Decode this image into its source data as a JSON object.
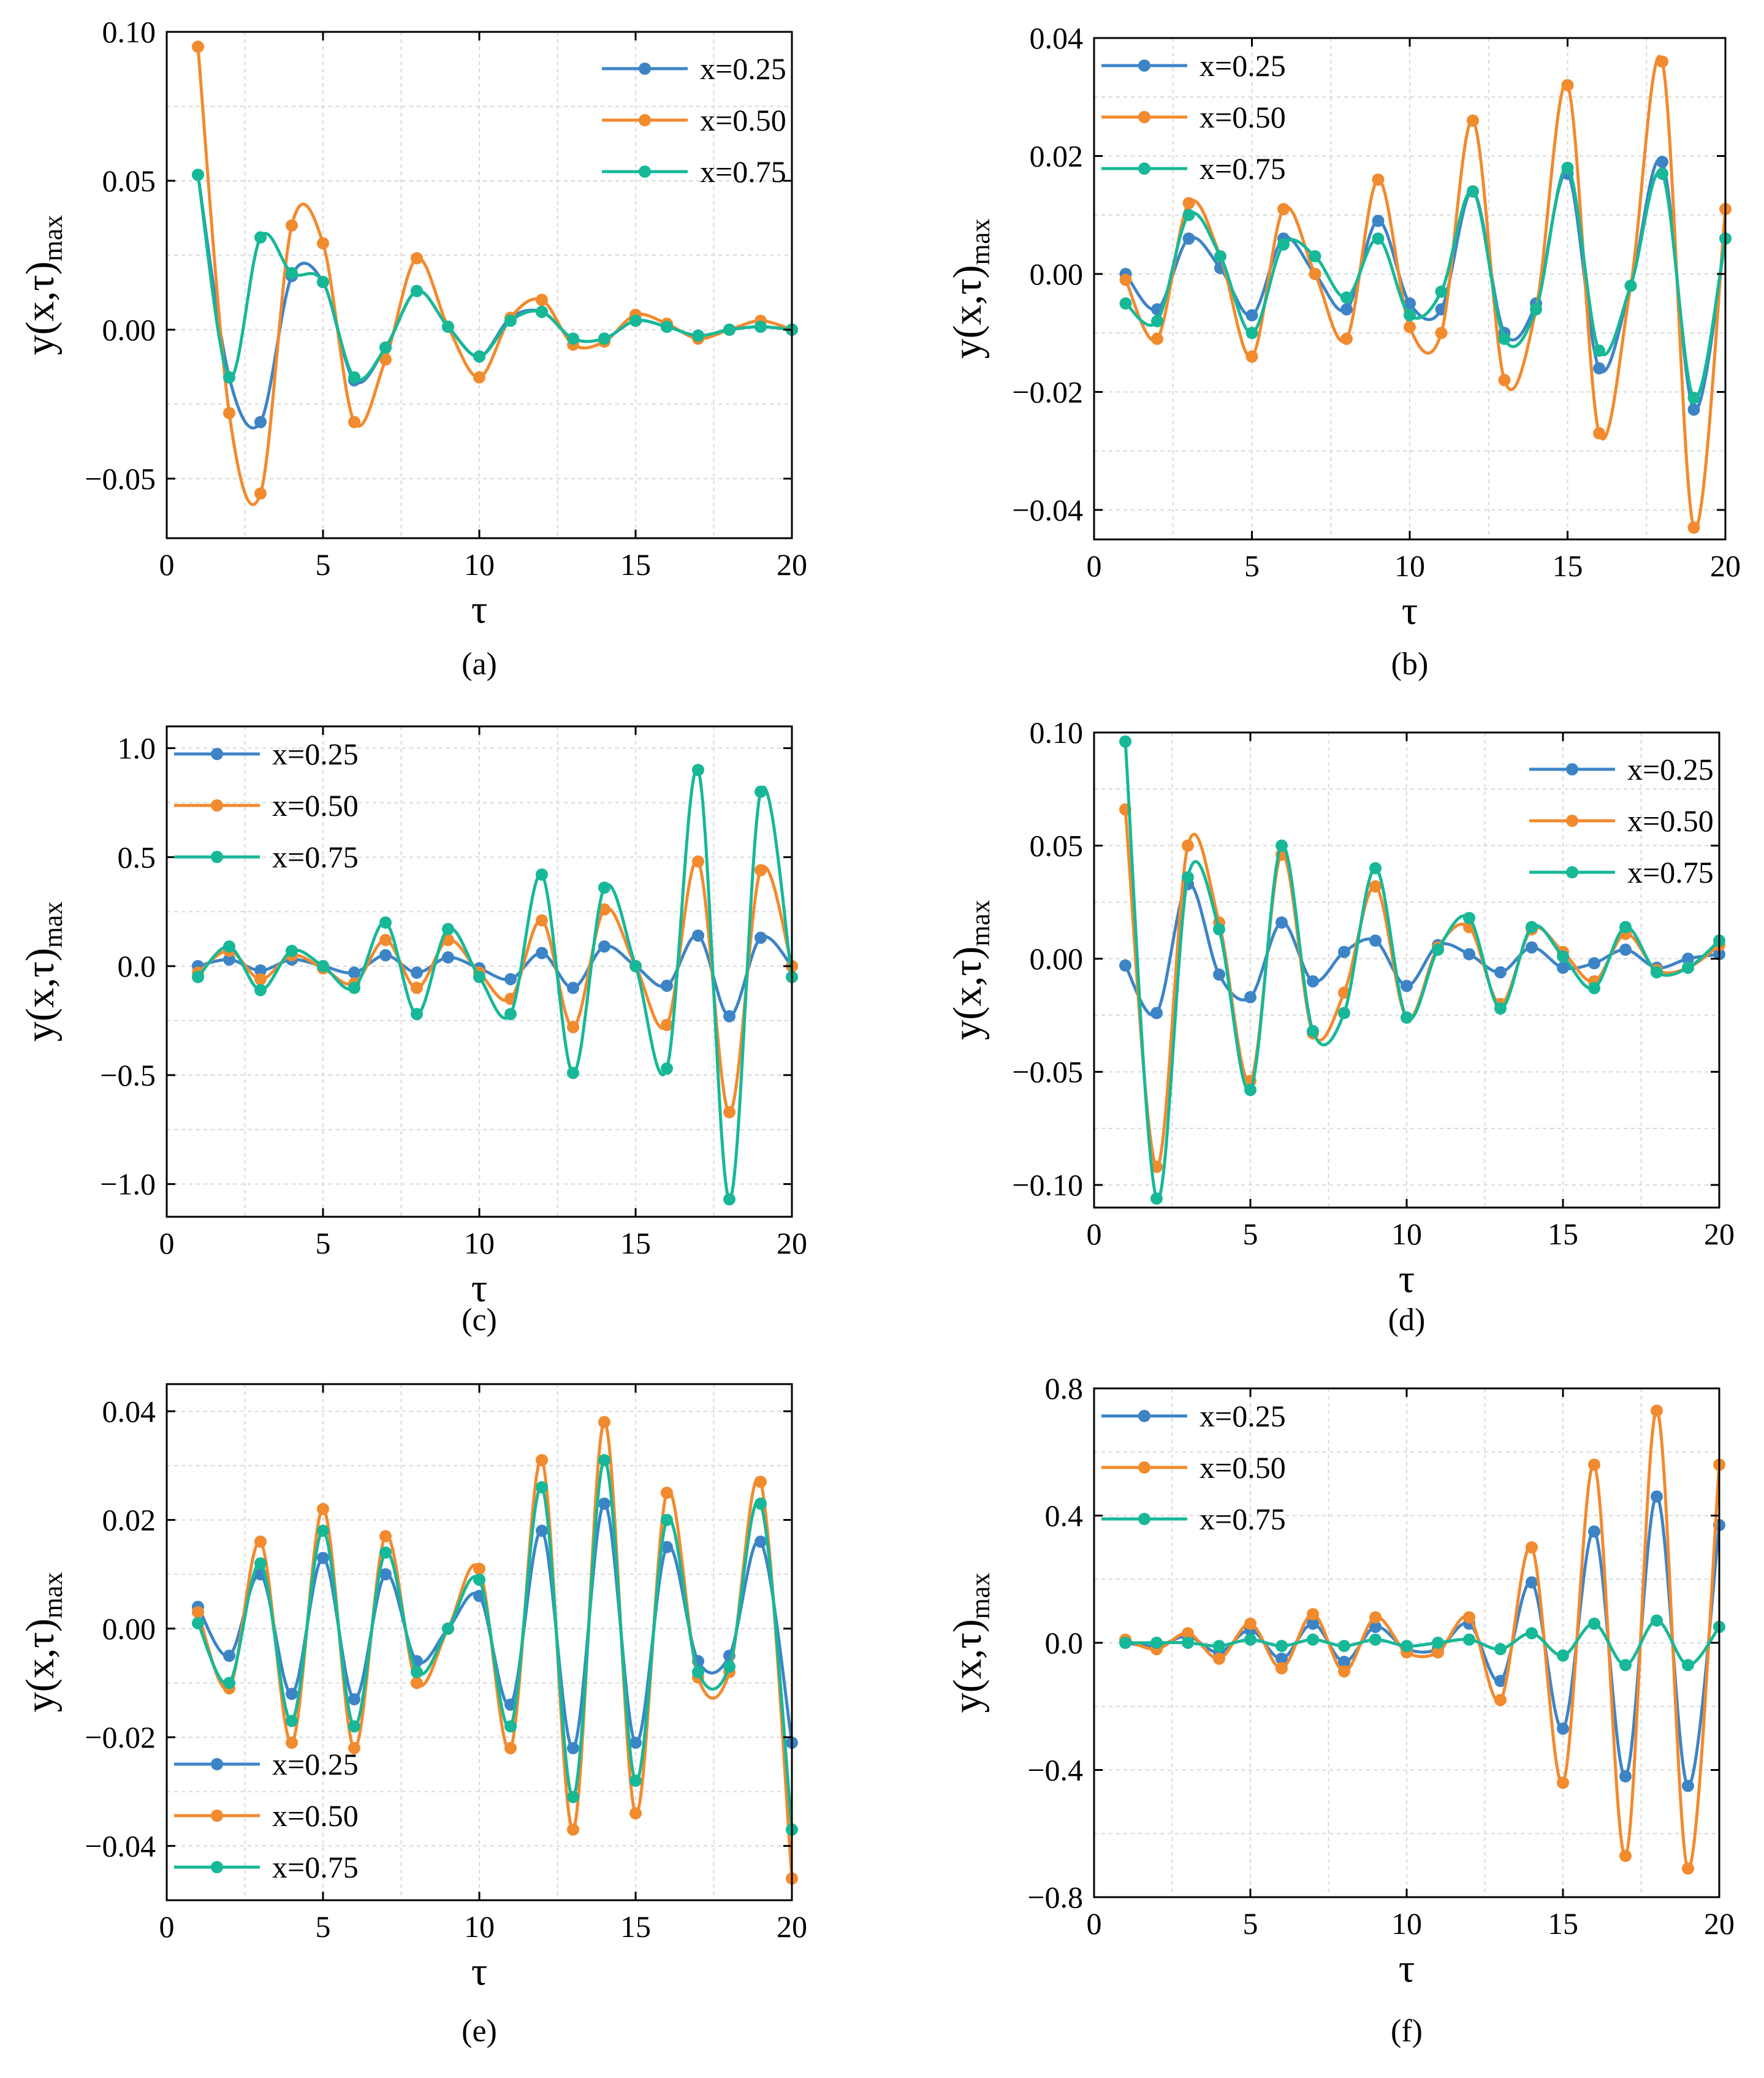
{
  "colors": {
    "x025": "#3d84c6",
    "x050": "#f28a2e",
    "x075": "#17b897",
    "grid": "#d9d9d9",
    "axis": "#000000"
  },
  "chart_data": [
    {
      "id": "a",
      "caption": "(a)",
      "type": "line",
      "xlabel": "τ",
      "ylabel": "y(x,τ)",
      "ylabel_sub": "max",
      "xlim": [
        0,
        20
      ],
      "ylim": [
        -0.07,
        0.1
      ],
      "xticks": [
        0,
        5,
        10,
        15,
        20
      ],
      "xtick_labels": [
        "0",
        "5",
        "10",
        "15",
        "20"
      ],
      "yticks": [
        -0.05,
        0,
        0.05,
        0.1
      ],
      "ytick_labels": [
        "−0.05",
        "0.00",
        "0.05",
        "0.10"
      ],
      "legend_pos": "top-right",
      "grid": true,
      "series": [
        {
          "name": "x=0.25",
          "color_key": "x025",
          "x": [
            1,
            2,
            3,
            4,
            5,
            6,
            7,
            8,
            9,
            10,
            11,
            12,
            13,
            14,
            15,
            16,
            17,
            18,
            19,
            20
          ],
          "values": [
            0.052,
            -0.016,
            -0.031,
            0.018,
            0.016,
            -0.017,
            -0.006,
            0.013,
            0.001,
            -0.009,
            0.004,
            0.006,
            -0.003,
            -0.003,
            0.003,
            0.001,
            -0.002,
            0.0,
            0.001,
            0.0
          ]
        },
        {
          "name": "x=0.50",
          "color_key": "x050",
          "x": [
            1,
            2,
            3,
            4,
            5,
            6,
            7,
            8,
            9,
            10,
            11,
            12,
            13,
            14,
            15,
            16,
            17,
            18,
            19,
            20
          ],
          "values": [
            0.095,
            -0.028,
            -0.055,
            0.035,
            0.029,
            -0.031,
            -0.01,
            0.024,
            0.001,
            -0.016,
            0.004,
            0.01,
            -0.005,
            -0.004,
            0.005,
            0.002,
            -0.003,
            0.0,
            0.003,
            0.0
          ]
        },
        {
          "name": "x=0.75",
          "color_key": "x075",
          "x": [
            1,
            2,
            3,
            4,
            5,
            6,
            7,
            8,
            9,
            10,
            11,
            12,
            13,
            14,
            15,
            16,
            17,
            18,
            19,
            20
          ],
          "values": [
            0.052,
            -0.016,
            0.031,
            0.019,
            0.016,
            -0.016,
            -0.006,
            0.013,
            0.001,
            -0.009,
            0.003,
            0.006,
            -0.003,
            -0.003,
            0.003,
            0.001,
            -0.002,
            0.0,
            0.001,
            0.0
          ]
        }
      ]
    },
    {
      "id": "b",
      "caption": "(b)",
      "type": "line",
      "xlabel": "τ",
      "ylabel": "y(x,τ)",
      "ylabel_sub": "max",
      "xlim": [
        0,
        20
      ],
      "ylim": [
        -0.045,
        0.04
      ],
      "xticks": [
        0,
        5,
        10,
        15,
        20
      ],
      "xtick_labels": [
        "0",
        "5",
        "10",
        "15",
        "20"
      ],
      "yticks": [
        -0.04,
        -0.02,
        0,
        0.02,
        0.04
      ],
      "ytick_labels": [
        "−0.04",
        "−0.02",
        "0.00",
        "0.02",
        "0.04"
      ],
      "legend_pos": "top-left",
      "grid": true,
      "series": [
        {
          "name": "x=0.25",
          "color_key": "x025",
          "x": [
            1,
            2,
            3,
            4,
            5,
            6,
            7,
            8,
            9,
            10,
            11,
            12,
            13,
            14,
            15,
            16,
            17,
            18,
            19,
            20
          ],
          "values": [
            0.0,
            -0.006,
            0.006,
            0.001,
            -0.007,
            0.006,
            0.0,
            -0.006,
            0.009,
            -0.005,
            -0.006,
            0.014,
            -0.01,
            -0.005,
            0.017,
            -0.016,
            -0.002,
            0.019,
            -0.023,
            0.006
          ]
        },
        {
          "name": "x=0.50",
          "color_key": "x050",
          "x": [
            1,
            2,
            3,
            4,
            5,
            6,
            7,
            8,
            9,
            10,
            11,
            12,
            13,
            14,
            15,
            16,
            17,
            18,
            19,
            20
          ],
          "values": [
            -0.001,
            -0.011,
            0.012,
            0.003,
            -0.014,
            0.011,
            0.0,
            -0.011,
            0.016,
            -0.009,
            -0.01,
            0.026,
            -0.018,
            -0.006,
            0.032,
            -0.027,
            -0.002,
            0.036,
            -0.043,
            0.011
          ]
        },
        {
          "name": "x=0.75",
          "color_key": "x075",
          "x": [
            1,
            2,
            3,
            4,
            5,
            6,
            7,
            8,
            9,
            10,
            11,
            12,
            13,
            14,
            15,
            16,
            17,
            18,
            19,
            20
          ],
          "values": [
            -0.005,
            -0.008,
            0.01,
            0.003,
            -0.01,
            0.005,
            0.003,
            -0.004,
            0.006,
            -0.007,
            -0.003,
            0.014,
            -0.011,
            -0.006,
            0.018,
            -0.013,
            -0.002,
            0.017,
            -0.021,
            0.006
          ]
        }
      ]
    },
    {
      "id": "c",
      "caption": "(c)",
      "type": "line",
      "xlabel": "τ",
      "ylabel": "y(x,τ)",
      "ylabel_sub": "max",
      "xlim": [
        0,
        20
      ],
      "ylim": [
        -1.15,
        1.1
      ],
      "xticks": [
        0,
        5,
        10,
        15,
        20
      ],
      "xtick_labels": [
        "0",
        "5",
        "10",
        "15",
        "20"
      ],
      "yticks": [
        -1.0,
        -0.5,
        0,
        0.5,
        1.0
      ],
      "ytick_labels": [
        "−1.0",
        "−0.5",
        "0.0",
        "0.5",
        "1.0"
      ],
      "legend_pos": "top-left",
      "grid": true,
      "series": [
        {
          "name": "x=0.25",
          "color_key": "x025",
          "x": [
            1,
            2,
            3,
            4,
            5,
            6,
            7,
            8,
            9,
            10,
            11,
            12,
            13,
            14,
            15,
            16,
            17,
            18,
            19,
            20
          ],
          "values": [
            0.0,
            0.03,
            -0.02,
            0.03,
            0.0,
            -0.03,
            0.05,
            -0.03,
            0.04,
            -0.01,
            -0.06,
            0.06,
            -0.1,
            0.09,
            0.0,
            -0.09,
            0.14,
            -0.23,
            0.13,
            0.0
          ]
        },
        {
          "name": "x=0.50",
          "color_key": "x050",
          "x": [
            1,
            2,
            3,
            4,
            5,
            6,
            7,
            8,
            9,
            10,
            11,
            12,
            13,
            14,
            15,
            16,
            17,
            18,
            19,
            20
          ],
          "values": [
            -0.03,
            0.07,
            -0.06,
            0.05,
            -0.01,
            -0.08,
            0.12,
            -0.1,
            0.12,
            -0.03,
            -0.15,
            0.21,
            -0.28,
            0.26,
            0.0,
            -0.27,
            0.48,
            -0.67,
            0.44,
            0.0
          ]
        },
        {
          "name": "x=0.75",
          "color_key": "x075",
          "x": [
            1,
            2,
            3,
            4,
            5,
            6,
            7,
            8,
            9,
            10,
            11,
            12,
            13,
            14,
            15,
            16,
            17,
            18,
            19,
            20
          ],
          "values": [
            -0.05,
            0.09,
            -0.11,
            0.07,
            0.0,
            -0.1,
            0.2,
            -0.22,
            0.17,
            -0.05,
            -0.22,
            0.42,
            -0.49,
            0.36,
            0.0,
            -0.47,
            0.9,
            -1.07,
            0.8,
            -0.05
          ]
        }
      ]
    },
    {
      "id": "d",
      "caption": "(d)",
      "type": "line",
      "xlabel": "τ",
      "ylabel": "y(x,τ)",
      "ylabel_sub": "max",
      "xlim": [
        0,
        20
      ],
      "ylim": [
        -0.11,
        0.1
      ],
      "xticks": [
        0,
        5,
        10,
        15,
        20
      ],
      "xtick_labels": [
        "0",
        "5",
        "10",
        "15",
        "20"
      ],
      "yticks": [
        -0.1,
        -0.05,
        0,
        0.05,
        0.1
      ],
      "ytick_labels": [
        "−0.10",
        "−0.05",
        "0.00",
        "0.05",
        "0.10"
      ],
      "legend_pos": "top-right",
      "grid": true,
      "series": [
        {
          "name": "x=0.25",
          "color_key": "x025",
          "x": [
            1,
            2,
            3,
            4,
            5,
            6,
            7,
            8,
            9,
            10,
            11,
            12,
            13,
            14,
            15,
            16,
            17,
            18,
            19,
            20
          ],
          "values": [
            -0.003,
            -0.024,
            0.033,
            -0.007,
            -0.017,
            0.016,
            -0.01,
            0.003,
            0.008,
            -0.012,
            0.006,
            0.002,
            -0.006,
            0.005,
            -0.004,
            -0.002,
            0.004,
            -0.004,
            0.0,
            0.002
          ]
        },
        {
          "name": "x=0.50",
          "color_key": "x050",
          "x": [
            1,
            2,
            3,
            4,
            5,
            6,
            7,
            8,
            9,
            10,
            11,
            12,
            13,
            14,
            15,
            16,
            17,
            18,
            19,
            20
          ],
          "values": [
            0.066,
            -0.092,
            0.05,
            0.016,
            -0.054,
            0.046,
            -0.033,
            -0.015,
            0.032,
            -0.026,
            0.005,
            0.014,
            -0.02,
            0.013,
            0.003,
            -0.01,
            0.011,
            -0.005,
            -0.004,
            0.006
          ]
        },
        {
          "name": "x=0.75",
          "color_key": "x075",
          "x": [
            1,
            2,
            3,
            4,
            5,
            6,
            7,
            8,
            9,
            10,
            11,
            12,
            13,
            14,
            15,
            16,
            17,
            18,
            19,
            20
          ],
          "values": [
            0.096,
            -0.106,
            0.036,
            0.013,
            -0.058,
            0.05,
            -0.032,
            -0.024,
            0.04,
            -0.026,
            0.004,
            0.018,
            -0.022,
            0.014,
            0.001,
            -0.013,
            0.014,
            -0.006,
            -0.004,
            0.008
          ]
        }
      ]
    },
    {
      "id": "e",
      "caption": "(e)",
      "type": "line",
      "xlabel": "τ",
      "ylabel": "y(x,τ)",
      "ylabel_sub": "max",
      "xlim": [
        0,
        20
      ],
      "ylim": [
        -0.05,
        0.045
      ],
      "xticks": [
        0,
        5,
        10,
        15,
        20
      ],
      "xtick_labels": [
        "0",
        "5",
        "10",
        "15",
        "20"
      ],
      "yticks": [
        -0.04,
        -0.02,
        0,
        0.02,
        0.04
      ],
      "ytick_labels": [
        "−0.04",
        "−0.02",
        "0.00",
        "0.02",
        "0.04"
      ],
      "legend_pos": "bottom-left",
      "grid": true,
      "series": [
        {
          "name": "x=0.25",
          "color_key": "x025",
          "x": [
            1,
            2,
            3,
            4,
            5,
            6,
            7,
            8,
            9,
            10,
            11,
            12,
            13,
            14,
            15,
            16,
            17,
            18,
            19,
            20
          ],
          "values": [
            0.004,
            -0.005,
            0.01,
            -0.012,
            0.013,
            -0.013,
            0.01,
            -0.006,
            0.0,
            0.006,
            -0.014,
            0.018,
            -0.022,
            0.023,
            -0.021,
            0.015,
            -0.006,
            -0.005,
            0.016,
            -0.021
          ]
        },
        {
          "name": "x=0.50",
          "color_key": "x050",
          "x": [
            1,
            2,
            3,
            4,
            5,
            6,
            7,
            8,
            9,
            10,
            11,
            12,
            13,
            14,
            15,
            16,
            17,
            18,
            19,
            20
          ],
          "values": [
            0.003,
            -0.011,
            0.016,
            -0.021,
            0.022,
            -0.022,
            0.017,
            -0.01,
            0.0,
            0.011,
            -0.022,
            0.031,
            -0.037,
            0.038,
            -0.034,
            0.025,
            -0.009,
            -0.008,
            0.027,
            -0.046
          ]
        },
        {
          "name": "x=0.75",
          "color_key": "x075",
          "x": [
            1,
            2,
            3,
            4,
            5,
            6,
            7,
            8,
            9,
            10,
            11,
            12,
            13,
            14,
            15,
            16,
            17,
            18,
            19,
            20
          ],
          "values": [
            0.001,
            -0.01,
            0.012,
            -0.017,
            0.018,
            -0.018,
            0.014,
            -0.008,
            0.0,
            0.009,
            -0.018,
            0.026,
            -0.031,
            0.031,
            -0.028,
            0.02,
            -0.008,
            -0.007,
            0.023,
            -0.037
          ]
        }
      ]
    },
    {
      "id": "f",
      "caption": "(f)",
      "type": "line",
      "xlabel": "τ",
      "ylabel": "y(x,τ)",
      "ylabel_sub": "max",
      "xlim": [
        0,
        20
      ],
      "ylim": [
        -0.8,
        0.8
      ],
      "xticks": [
        0,
        5,
        10,
        15,
        20
      ],
      "xtick_labels": [
        "0",
        "5",
        "10",
        "15",
        "20"
      ],
      "yticks": [
        -0.8,
        -0.4,
        0,
        0.4,
        0.8
      ],
      "ytick_labels": [
        "−0.8",
        "−0.4",
        "0.0",
        "0.4",
        "0.8"
      ],
      "legend_pos": "top-left",
      "grid": true,
      "series": [
        {
          "name": "x=0.25",
          "color_key": "x025",
          "x": [
            1,
            2,
            3,
            4,
            5,
            6,
            7,
            8,
            9,
            10,
            11,
            12,
            13,
            14,
            15,
            16,
            17,
            18,
            19,
            20
          ],
          "values": [
            0.0,
            -0.01,
            0.02,
            -0.03,
            0.04,
            -0.05,
            0.06,
            -0.06,
            0.05,
            -0.02,
            -0.02,
            0.06,
            -0.12,
            0.19,
            -0.27,
            0.35,
            -0.42,
            0.46,
            -0.45,
            0.37
          ]
        },
        {
          "name": "x=0.50",
          "color_key": "x050",
          "x": [
            1,
            2,
            3,
            4,
            5,
            6,
            7,
            8,
            9,
            10,
            11,
            12,
            13,
            14,
            15,
            16,
            17,
            18,
            19,
            20
          ],
          "values": [
            0.01,
            -0.02,
            0.03,
            -0.05,
            0.06,
            -0.08,
            0.09,
            -0.09,
            0.08,
            -0.03,
            -0.03,
            0.08,
            -0.18,
            0.3,
            -0.44,
            0.56,
            -0.67,
            0.73,
            -0.71,
            0.56
          ]
        },
        {
          "name": "x=0.75",
          "color_key": "x075",
          "x": [
            1,
            2,
            3,
            4,
            5,
            6,
            7,
            8,
            9,
            10,
            11,
            12,
            13,
            14,
            15,
            16,
            17,
            18,
            19,
            20
          ],
          "values": [
            0.0,
            0.0,
            0.0,
            -0.01,
            0.01,
            -0.01,
            0.01,
            -0.01,
            0.01,
            -0.01,
            0.0,
            0.01,
            -0.02,
            0.03,
            -0.04,
            0.06,
            -0.07,
            0.07,
            -0.07,
            0.05
          ]
        }
      ]
    }
  ]
}
